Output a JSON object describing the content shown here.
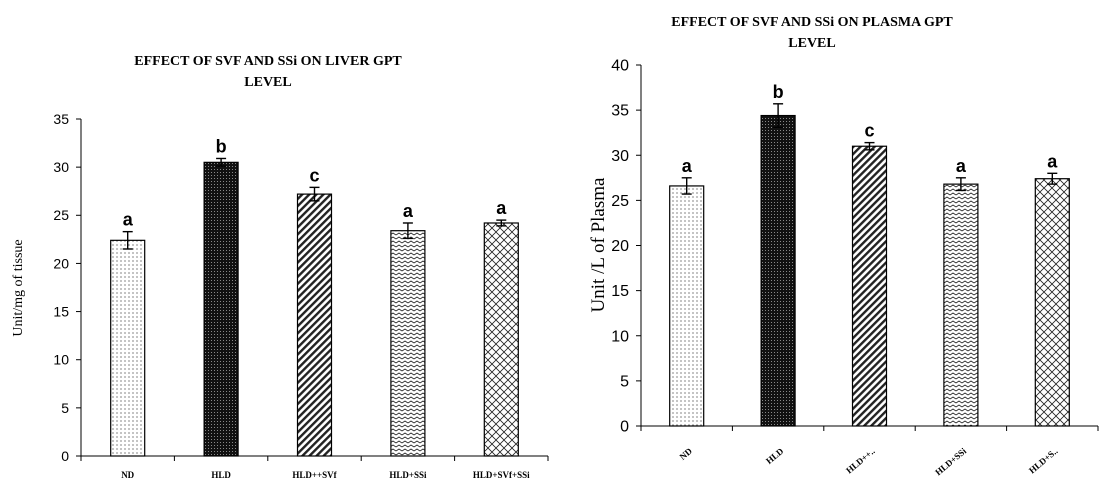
{
  "chart_data": [
    {
      "type": "bar",
      "title_lines": [
        "EFFECT OF SVF AND SSi ON LIVER GPT",
        "LEVEL"
      ],
      "xlabel": "",
      "ylabel": "Unit/mg of tissue",
      "ylim": [
        0,
        35
      ],
      "yticks": [
        "0",
        "5",
        "10",
        "15",
        "20",
        "25",
        "30",
        "35"
      ],
      "grid": false,
      "categories": [
        "ND",
        "HLD",
        "HLD++SVf",
        "HLD+SSi",
        "HLD+SVf+SSi"
      ],
      "values": [
        22.4,
        30.5,
        27.2,
        23.4,
        24.2
      ],
      "errors": [
        0.9,
        0.4,
        0.7,
        0.8,
        0.3
      ],
      "significance": [
        "a",
        "b",
        "c",
        "a",
        "a"
      ],
      "patterns": [
        "dots",
        "dense-dots",
        "diagonal-up",
        "horizontal-waves",
        "crosshatch"
      ]
    },
    {
      "type": "bar",
      "title_lines": [
        "EFFECT OF SVF AND SSi  ON PLASMA GPT",
        "LEVEL"
      ],
      "xlabel": "",
      "ylabel": "Unit /L of Plasma",
      "ylim": [
        0,
        40
      ],
      "yticks": [
        "0",
        "5",
        "10",
        "15",
        "20",
        "25",
        "30",
        "35",
        "40"
      ],
      "grid": false,
      "categories": [
        "ND",
        "HLD",
        "HLD++..",
        "HLD+SSi",
        "HLD+S.."
      ],
      "values": [
        26.6,
        34.4,
        31.0,
        26.8,
        27.4
      ],
      "errors": [
        0.9,
        1.3,
        0.4,
        0.7,
        0.6
      ],
      "significance": [
        "a",
        "b",
        "c",
        "a",
        "a"
      ],
      "patterns": [
        "dots",
        "dense-dots",
        "diagonal-up",
        "horizontal-waves",
        "crosshatch"
      ]
    }
  ]
}
